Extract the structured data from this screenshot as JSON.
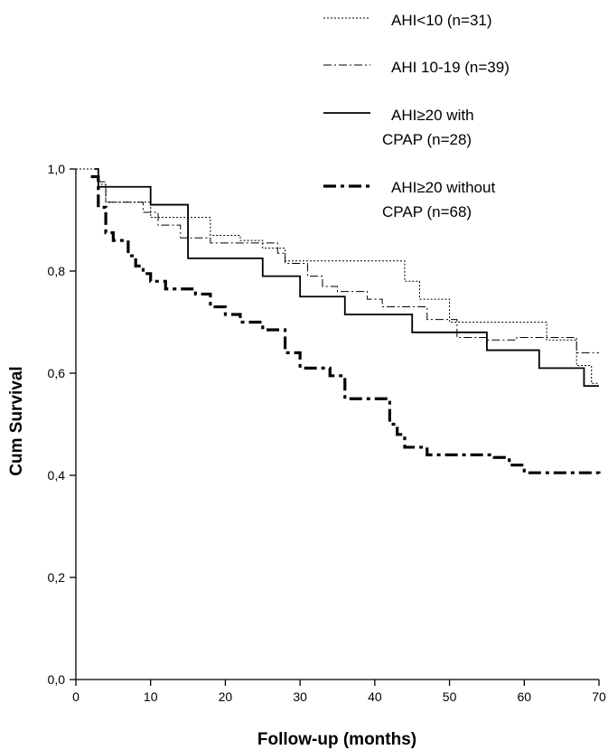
{
  "chart_data": {
    "type": "line",
    "title": "",
    "xlabel": "Follow-up (months)",
    "ylabel": "Cum Survival",
    "xlim": [
      0,
      70
    ],
    "ylim": [
      0.0,
      1.0
    ],
    "x_ticks": [
      0,
      10,
      20,
      30,
      40,
      50,
      60,
      70
    ],
    "x_tick_labels": [
      "0",
      "10",
      "20",
      "30",
      "40",
      "50",
      "60",
      "70"
    ],
    "y_ticks": [
      0.0,
      0.2,
      0.4,
      0.6,
      0.8,
      1.0
    ],
    "y_tick_labels": [
      "0,0",
      "0,2",
      "0,4",
      "0,6",
      "0,8",
      "1,0"
    ],
    "grid": false,
    "legend_position": "top-right",
    "series": [
      {
        "name": "AHI<10 (n=31)",
        "line_style": "dotted",
        "points": [
          [
            2.5,
            1.0
          ],
          [
            3.0,
            0.97
          ],
          [
            4.0,
            0.935
          ],
          [
            10.0,
            0.905
          ],
          [
            18.0,
            0.87
          ],
          [
            22.0,
            0.86
          ],
          [
            25.0,
            0.845
          ],
          [
            28.0,
            0.82
          ],
          [
            34.0,
            0.82
          ],
          [
            44.0,
            0.78
          ],
          [
            46.0,
            0.745
          ],
          [
            50.0,
            0.7
          ],
          [
            56.0,
            0.7
          ],
          [
            63.0,
            0.665
          ],
          [
            67.0,
            0.615
          ],
          [
            69.0,
            0.58
          ],
          [
            70.0,
            0.58
          ]
        ]
      },
      {
        "name": "AHI 10-19 (n=39)",
        "line_style": "dash-dot",
        "points": [
          [
            2.5,
            1.0
          ],
          [
            3.0,
            0.975
          ],
          [
            4.0,
            0.935
          ],
          [
            9.0,
            0.915
          ],
          [
            11.0,
            0.89
          ],
          [
            14.0,
            0.865
          ],
          [
            18.0,
            0.855
          ],
          [
            27.0,
            0.835
          ],
          [
            28.0,
            0.815
          ],
          [
            31.0,
            0.79
          ],
          [
            33.0,
            0.77
          ],
          [
            35.0,
            0.76
          ],
          [
            39.0,
            0.745
          ],
          [
            41.0,
            0.73
          ],
          [
            47.0,
            0.705
          ],
          [
            51.0,
            0.67
          ],
          [
            55.0,
            0.665
          ],
          [
            59.0,
            0.67
          ],
          [
            67.0,
            0.64
          ],
          [
            68.0,
            0.64
          ],
          [
            70.0,
            0.64
          ]
        ]
      },
      {
        "name": "AHI≥20 with CPAP (n=28)",
        "line_style": "solid",
        "points": [
          [
            2.5,
            1.0
          ],
          [
            3.0,
            0.965
          ],
          [
            10.0,
            0.93
          ],
          [
            15.0,
            0.825
          ],
          [
            25.0,
            0.79
          ],
          [
            30.0,
            0.75
          ],
          [
            36.0,
            0.715
          ],
          [
            45.0,
            0.68
          ],
          [
            55.0,
            0.645
          ],
          [
            62.0,
            0.61
          ],
          [
            68.0,
            0.575
          ],
          [
            70.0,
            0.575
          ]
        ]
      },
      {
        "name": "AHI≥20 without CPAP (n=68)",
        "line_style": "heavy-dash-dot",
        "points": [
          [
            2.0,
            0.985
          ],
          [
            3.0,
            0.925
          ],
          [
            4.0,
            0.875
          ],
          [
            5.0,
            0.86
          ],
          [
            7.0,
            0.83
          ],
          [
            8.0,
            0.81
          ],
          [
            9.0,
            0.795
          ],
          [
            10.0,
            0.78
          ],
          [
            12.0,
            0.765
          ],
          [
            16.0,
            0.755
          ],
          [
            18.0,
            0.73
          ],
          [
            20.0,
            0.715
          ],
          [
            22.0,
            0.7
          ],
          [
            25.0,
            0.685
          ],
          [
            28.0,
            0.64
          ],
          [
            30.0,
            0.61
          ],
          [
            34.0,
            0.595
          ],
          [
            36.0,
            0.55
          ],
          [
            42.0,
            0.5
          ],
          [
            43.0,
            0.48
          ],
          [
            44.0,
            0.455
          ],
          [
            47.0,
            0.44
          ],
          [
            56.0,
            0.435
          ],
          [
            58.0,
            0.42
          ],
          [
            60.0,
            0.405
          ],
          [
            70.0,
            0.4
          ]
        ]
      }
    ],
    "legend": [
      {
        "lines": [
          "AHI<10 (n=31)"
        ]
      },
      {
        "lines": [
          "AHI 10-19 (n=39)"
        ]
      },
      {
        "lines": [
          "AHI≥20 with",
          "CPAP (n=28)"
        ]
      },
      {
        "lines": [
          "AHI≥20 without",
          "CPAP (n=68)"
        ]
      }
    ]
  }
}
